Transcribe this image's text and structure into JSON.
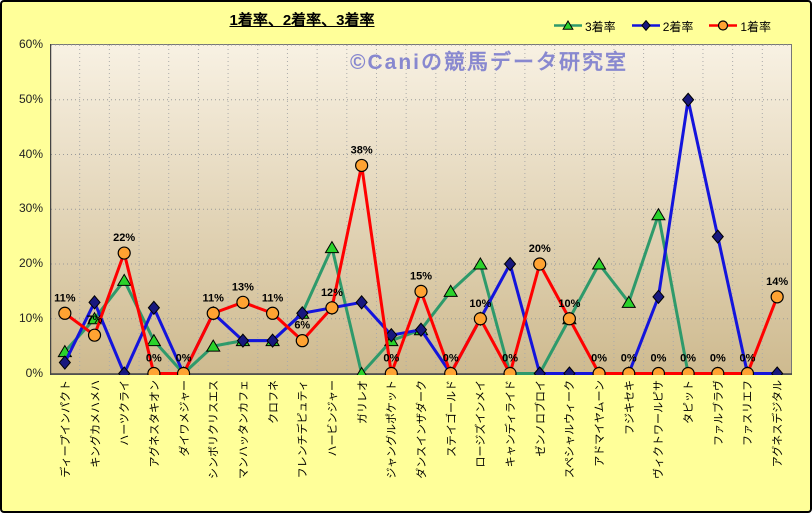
{
  "watermark": "©Caniの競馬データ研究室",
  "colors": {
    "outer_bg": "#FFFF99",
    "plot_top": "#F8F1E3",
    "plot_bottom": "#CEBA8F",
    "plot_border": "#777777",
    "axis": "#444444",
    "grid_h": "#999999",
    "grid_v": "#AAAAAA",
    "watermark": "#8888CF",
    "title": "#000000"
  },
  "chart_data": {
    "type": "line",
    "title": "1着率、2着率、3着率",
    "categories": [
      "ディープインパクト",
      "キングカメハメハ",
      "ハーツクライ",
      "アグネスタキオン",
      "ダイワメジャー",
      "シンボリクリスエス",
      "マンハッタンカフェ",
      "クロフネ",
      "フレンチデピュティ",
      "ハービンジャー",
      "ガリレオ",
      "ジャングルポケット",
      "ダンスインザダーク",
      "ステイゴールド",
      "ロージズインメイ",
      "キャンディライド",
      "ゼンノロブロイ",
      "スペシャルウィーク",
      "アドマイヤムーン",
      "フジキセキ",
      "ヴィクトワールピサ",
      "タピット",
      "ファルブラヴ",
      "ファスリエフ",
      "アグネスデジタル"
    ],
    "series": [
      {
        "name": "3着率",
        "marker": "triangle",
        "line_color": "#2E9A6B",
        "marker_color": "#2BD22B",
        "values": [
          4,
          10,
          17,
          6,
          0,
          5,
          6,
          6,
          11,
          23,
          0,
          6,
          8,
          15,
          20,
          0,
          0,
          10,
          20,
          13,
          29,
          0,
          0,
          0,
          0
        ]
      },
      {
        "name": "2着率",
        "marker": "diamond",
        "line_color": "#1414DC",
        "marker_color": "#18187E",
        "values": [
          2,
          13,
          0,
          12,
          0,
          11,
          6,
          6,
          11,
          12,
          13,
          7,
          8,
          0,
          10,
          20,
          0,
          0,
          0,
          0,
          14,
          50,
          25,
          0,
          0
        ]
      },
      {
        "name": "1着率",
        "marker": "circle",
        "line_color": "#FF0000",
        "marker_color": "#FFA332",
        "values": [
          11,
          7,
          22,
          0,
          0,
          11,
          13,
          11,
          6,
          12,
          38,
          0,
          15,
          0,
          10,
          0,
          20,
          10,
          0,
          0,
          0,
          0,
          0,
          0,
          14
        ],
        "labels": [
          "11%",
          "7%",
          "22%",
          "0%",
          "0%",
          "11%",
          "13%",
          "11%",
          "6%",
          "12%",
          "38%",
          "0%",
          "15%",
          "0%",
          "10%",
          "0%",
          "20%",
          "10%",
          "0%",
          "0%",
          "0%",
          "0%",
          "0%",
          "0%",
          "14%"
        ]
      }
    ],
    "ylim": [
      0,
      60
    ],
    "y_ticks": [
      "0%",
      "10%",
      "20%",
      "30%",
      "40%",
      "50%",
      "60%"
    ],
    "grid": true,
    "legend_position": "top-right"
  }
}
